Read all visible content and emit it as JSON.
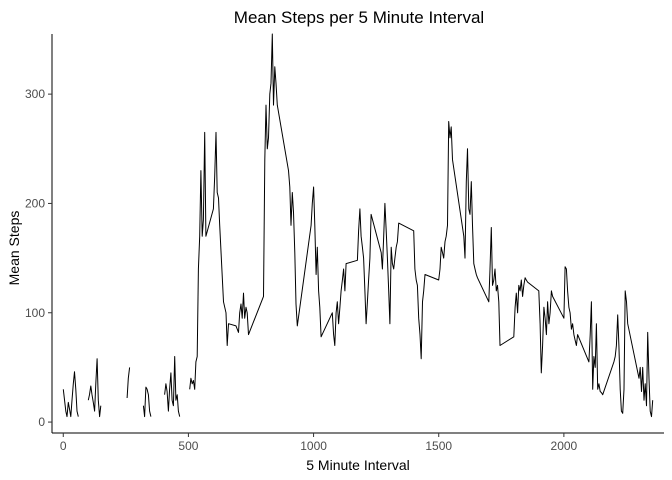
{
  "chart_data": {
    "type": "line",
    "title": "Mean Steps per 5 Minute Interval",
    "xlabel": "5 Minute Interval",
    "ylabel": "Mean Steps",
    "xlim": [
      -45,
      2400
    ],
    "ylim": [
      -10,
      355
    ],
    "xticks": [
      0,
      500,
      1000,
      1500,
      2000
    ],
    "yticks": [
      0,
      100,
      200,
      300
    ],
    "grid": false,
    "legend": "none",
    "series": [
      {
        "color": "#000000",
        "segments": [
          [
            [
              0,
              30
            ],
            [
              10,
              10
            ],
            [
              15,
              5
            ],
            [
              20,
              18
            ],
            [
              25,
              12
            ],
            [
              30,
              5
            ],
            [
              35,
              20
            ],
            [
              40,
              35
            ],
            [
              45,
              46
            ],
            [
              50,
              30
            ],
            [
              55,
              10
            ],
            [
              60,
              5
            ]
          ],
          [
            [
              100,
              20
            ],
            [
              105,
              25
            ],
            [
              110,
              33
            ],
            [
              115,
              25
            ],
            [
              120,
              18
            ],
            [
              125,
              10
            ],
            [
              130,
              35
            ],
            [
              135,
              58
            ],
            [
              140,
              20
            ],
            [
              145,
              5
            ],
            [
              150,
              15
            ]
          ],
          [
            [
              255,
              22
            ],
            [
              260,
              40
            ],
            [
              265,
              50
            ]
          ],
          [
            [
              320,
              15
            ],
            [
              325,
              5
            ],
            [
              330,
              32
            ],
            [
              335,
              30
            ],
            [
              340,
              25
            ],
            [
              345,
              10
            ],
            [
              350,
              5
            ]
          ],
          [
            [
              405,
              25
            ],
            [
              410,
              35
            ],
            [
              415,
              28
            ],
            [
              420,
              10
            ],
            [
              425,
              30
            ],
            [
              430,
              45
            ],
            [
              435,
              20
            ],
            [
              440,
              15
            ],
            [
              445,
              60
            ],
            [
              450,
              20
            ],
            [
              455,
              25
            ],
            [
              460,
              10
            ],
            [
              465,
              5
            ]
          ],
          [
            [
              505,
              30
            ],
            [
              510,
              40
            ],
            [
              515,
              35
            ],
            [
              520,
              38
            ],
            [
              525,
              30
            ],
            [
              530,
              55
            ],
            [
              535,
              60
            ],
            [
              540,
              140
            ],
            [
              545,
              170
            ],
            [
              550,
              230
            ],
            [
              555,
              170
            ],
            [
              560,
              185
            ],
            [
              565,
              265
            ],
            [
              570,
              170
            ],
            [
              600,
              195
            ],
            [
              605,
              225
            ],
            [
              610,
              265
            ],
            [
              615,
              210
            ],
            [
              620,
              205
            ],
            [
              625,
              180
            ],
            [
              640,
              110
            ],
            [
              650,
              100
            ],
            [
              655,
              70
            ],
            [
              660,
              90
            ],
            [
              690,
              88
            ],
            [
              700,
              82
            ],
            [
              705,
              100
            ],
            [
              710,
              108
            ],
            [
              715,
              95
            ],
            [
              720,
              118
            ],
            [
              725,
              95
            ],
            [
              730,
              105
            ],
            [
              735,
              100
            ],
            [
              740,
              80
            ],
            [
              800,
              115
            ],
            [
              805,
              240
            ],
            [
              810,
              290
            ],
            [
              815,
              250
            ],
            [
              820,
              260
            ],
            [
              825,
              300
            ],
            [
              830,
              310
            ],
            [
              835,
              355
            ],
            [
              840,
              290
            ],
            [
              845,
              325
            ],
            [
              850,
              310
            ],
            [
              855,
              290
            ],
            [
              900,
              230
            ],
            [
              905,
              215
            ],
            [
              910,
              180
            ],
            [
              915,
              210
            ],
            [
              920,
              192
            ],
            [
              925,
              155
            ],
            [
              930,
              108
            ],
            [
              935,
              88
            ],
            [
              990,
              180
            ],
            [
              995,
              200
            ],
            [
              1000,
              215
            ],
            [
              1005,
              180
            ],
            [
              1010,
              135
            ],
            [
              1015,
              160
            ],
            [
              1020,
              120
            ],
            [
              1025,
              105
            ],
            [
              1030,
              78
            ],
            [
              1075,
              100
            ],
            [
              1080,
              80
            ],
            [
              1085,
              70
            ],
            [
              1090,
              100
            ],
            [
              1095,
              110
            ],
            [
              1100,
              90
            ],
            [
              1105,
              105
            ],
            [
              1110,
              120
            ],
            [
              1115,
              130
            ],
            [
              1120,
              140
            ],
            [
              1125,
              120
            ],
            [
              1130,
              145
            ],
            [
              1175,
              148
            ],
            [
              1180,
              175
            ],
            [
              1185,
              195
            ],
            [
              1190,
              170
            ],
            [
              1195,
              160
            ],
            [
              1200,
              150
            ],
            [
              1205,
              120
            ],
            [
              1210,
              90
            ],
            [
              1215,
              110
            ],
            [
              1220,
              130
            ],
            [
              1225,
              150
            ],
            [
              1230,
              190
            ],
            [
              1270,
              155
            ],
            [
              1275,
              140
            ],
            [
              1280,
              170
            ],
            [
              1285,
              200
            ],
            [
              1290,
              175
            ],
            [
              1295,
              150
            ],
            [
              1300,
              120
            ],
            [
              1305,
              90
            ],
            [
              1310,
              160
            ],
            [
              1315,
              145
            ],
            [
              1320,
              140
            ],
            [
              1325,
              150
            ],
            [
              1330,
              160
            ],
            [
              1335,
              165
            ],
            [
              1340,
              182
            ],
            [
              1400,
              175
            ],
            [
              1405,
              140
            ],
            [
              1410,
              130
            ],
            [
              1415,
              125
            ],
            [
              1420,
              95
            ],
            [
              1425,
              80
            ],
            [
              1430,
              58
            ],
            [
              1435,
              110
            ],
            [
              1440,
              120
            ],
            [
              1445,
              135
            ],
            [
              1500,
              130
            ],
            [
              1505,
              140
            ],
            [
              1510,
              160
            ],
            [
              1515,
              155
            ],
            [
              1520,
              150
            ],
            [
              1525,
              165
            ],
            [
              1530,
              170
            ],
            [
              1535,
              180
            ],
            [
              1540,
              275
            ],
            [
              1545,
              260
            ],
            [
              1550,
              270
            ],
            [
              1555,
              240
            ],
            [
              1600,
              170
            ],
            [
              1605,
              150
            ],
            [
              1610,
              220
            ],
            [
              1615,
              250
            ],
            [
              1620,
              195
            ],
            [
              1625,
              190
            ],
            [
              1630,
              220
            ],
            [
              1635,
              180
            ],
            [
              1640,
              145
            ],
            [
              1645,
              140
            ],
            [
              1650,
              135
            ],
            [
              1655,
              132
            ],
            [
              1700,
              110
            ],
            [
              1705,
              140
            ],
            [
              1710,
              178
            ],
            [
              1715,
              125
            ],
            [
              1720,
              130
            ],
            [
              1725,
              140
            ],
            [
              1730,
              120
            ],
            [
              1735,
              125
            ],
            [
              1740,
              110
            ],
            [
              1745,
              70
            ],
            [
              1800,
              78
            ],
            [
              1805,
              105
            ],
            [
              1810,
              118
            ],
            [
              1815,
              100
            ],
            [
              1820,
              125
            ],
            [
              1825,
              120
            ],
            [
              1830,
              130
            ],
            [
              1835,
              115
            ],
            [
              1840,
              125
            ],
            [
              1845,
              132
            ],
            [
              1850,
              130
            ],
            [
              1855,
              128
            ],
            [
              1900,
              120
            ],
            [
              1905,
              90
            ],
            [
              1910,
              45
            ],
            [
              1915,
              70
            ],
            [
              1920,
              105
            ],
            [
              1925,
              95
            ],
            [
              1930,
              80
            ],
            [
              1935,
              110
            ],
            [
              1940,
              90
            ],
            [
              1945,
              100
            ],
            [
              1950,
              120
            ],
            [
              1955,
              115
            ],
            [
              2000,
              95
            ],
            [
              2005,
              142
            ],
            [
              2010,
              140
            ],
            [
              2015,
              120
            ],
            [
              2020,
              105
            ],
            [
              2025,
              100
            ],
            [
              2030,
              85
            ],
            [
              2035,
              90
            ],
            [
              2040,
              80
            ],
            [
              2045,
              75
            ],
            [
              2050,
              70
            ],
            [
              2055,
              80
            ],
            [
              2100,
              55
            ],
            [
              2105,
              80
            ],
            [
              2110,
              110
            ],
            [
              2115,
              30
            ],
            [
              2120,
              60
            ],
            [
              2125,
              50
            ],
            [
              2130,
              90
            ],
            [
              2135,
              30
            ],
            [
              2140,
              35
            ],
            [
              2145,
              28
            ],
            [
              2150,
              27
            ],
            [
              2155,
              25
            ],
            [
              2200,
              55
            ],
            [
              2205,
              60
            ],
            [
              2210,
              70
            ],
            [
              2215,
              98
            ],
            [
              2220,
              70
            ],
            [
              2225,
              30
            ],
            [
              2230,
              10
            ],
            [
              2235,
              8
            ],
            [
              2240,
              30
            ],
            [
              2245,
              120
            ],
            [
              2250,
              110
            ],
            [
              2255,
              90
            ],
            [
              2300,
              40
            ],
            [
              2305,
              50
            ],
            [
              2310,
              28
            ],
            [
              2315,
              50
            ],
            [
              2320,
              20
            ],
            [
              2325,
              35
            ],
            [
              2330,
              15
            ],
            [
              2335,
              82
            ],
            [
              2340,
              40
            ],
            [
              2345,
              10
            ],
            [
              2350,
              5
            ],
            [
              2355,
              20
            ]
          ]
        ]
      }
    ]
  }
}
